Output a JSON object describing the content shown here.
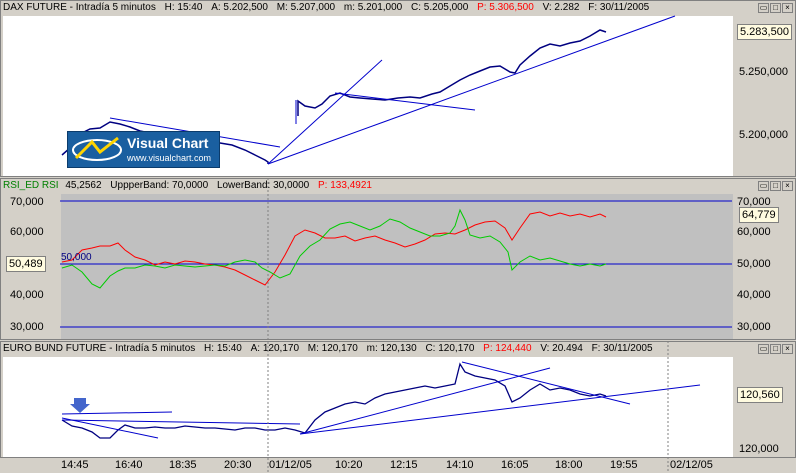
{
  "dax": {
    "name": "DAX FUTURE - Intradía 5 minutos",
    "h": "H: 15:40",
    "a": "A: 5.202,500",
    "m": "M: 5.207,000",
    "lo": "m: 5.201,000",
    "c": "C: 5.205,000",
    "p": "P: 5.306,500",
    "v": "V: 2.282",
    "f": "F: 30/11/2005",
    "last_marker": "5.283,500",
    "yticks": [
      "5.250,000",
      "5.200,000"
    ]
  },
  "rsi": {
    "name": "RSI_ED RSI",
    "value": "45,2562",
    "upper": "UppperBand: 70,0000",
    "lower": "LowerBand: 30,0000",
    "p": "P: 133,4921",
    "left_marker": "50,489",
    "right_marker": "64,779",
    "inline_label": "50,000",
    "yticks_left": [
      "70,000",
      "60,000",
      "40,000",
      "30,000"
    ],
    "yticks_right": [
      "70,000",
      "60,000",
      "50,000",
      "40,000",
      "30,000"
    ]
  },
  "bund": {
    "name": "EURO BUND FUTURE - Intradía 5 minutos",
    "h": "H: 15:40",
    "a": "A: 120,170",
    "m": "M: 120,170",
    "lo": "m: 120,130",
    "c": "C: 120,170",
    "p": "P: 124,440",
    "v": "V: 20.494",
    "f": "F: 30/11/2005",
    "last_marker": "120,560",
    "yticks": [
      "120,000"
    ]
  },
  "logo": {
    "title": "Visual Chart",
    "url": "www.visualchart.com"
  },
  "xaxis": [
    "14:45",
    "16:40",
    "18:35",
    "20:30",
    "01/12/05",
    "10:20",
    "12:15",
    "14:10",
    "16:05",
    "18:00",
    "19:55",
    "02/12/05"
  ],
  "colors": {
    "price": "#000080",
    "trend": "#0000cc",
    "rsi_red": "#ff0000",
    "rsi_green": "#00cc00",
    "band": "#0000cc",
    "rsi_bg": "#c0c0c0"
  }
}
